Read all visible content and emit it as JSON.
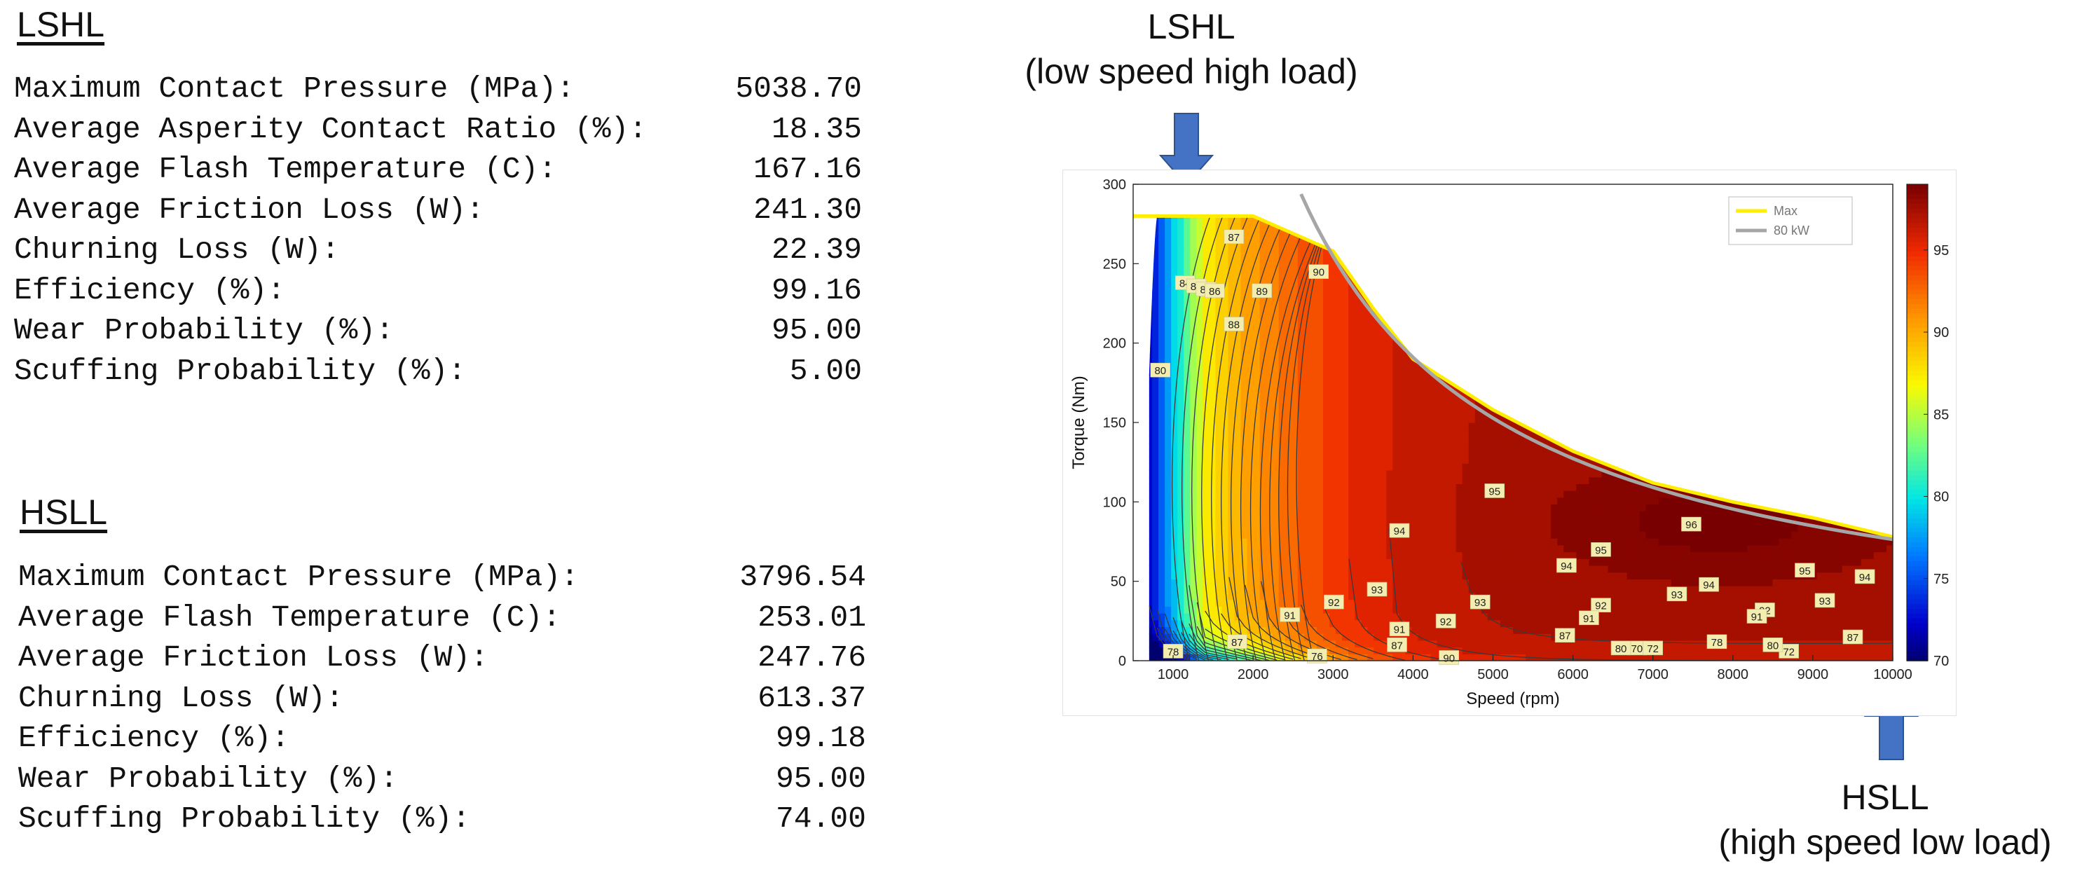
{
  "lshl": {
    "title": "LSHL",
    "rows": [
      {
        "label": "Maximum Contact Pressure (MPa):",
        "value": "5038.70"
      },
      {
        "label": "Average Asperity Contact Ratio (%):",
        "value": "18.35"
      },
      {
        "label": "Average Flash Temperature (C):",
        "value": "167.16"
      },
      {
        "label": "Average Friction Loss (W):",
        "value": "241.30"
      },
      {
        "label": "Churning Loss (W):",
        "value": "22.39"
      },
      {
        "label": "Efficiency (%):",
        "value": "99.16"
      },
      {
        "label": "Wear Probability (%):",
        "value": "95.00"
      },
      {
        "label": "Scuffing Probability (%):",
        "value": "5.00"
      }
    ]
  },
  "hsll": {
    "title": "HSLL",
    "rows": [
      {
        "label": "Maximum Contact Pressure (MPa):",
        "value": "3796.54"
      },
      {
        "label": "Average Flash Temperature (C):",
        "value": "253.01"
      },
      {
        "label": "Average Friction Loss (W):",
        "value": "247.76"
      },
      {
        "label": "Churning Loss (W):",
        "value": "613.37"
      },
      {
        "label": "Efficiency (%):",
        "value": "99.18"
      },
      {
        "label": "Wear Probability (%):",
        "value": "95.00"
      },
      {
        "label": "Scuffing Probability (%):",
        "value": "74.00"
      }
    ]
  },
  "callouts": {
    "lshl": {
      "line1": "LSHL",
      "line2": "(low speed high load)"
    },
    "hsll": {
      "line1": "HSLL",
      "line2": "(high speed low load)"
    }
  },
  "colors": {
    "arrow": "#4472c4",
    "max_line": "#ffee00",
    "power_line": "#a6a6a6",
    "contour_line": "#3a3a3a",
    "label_bg": "#f3eeb0"
  },
  "chart_data": {
    "type": "contour",
    "xlabel": "Speed (rpm)",
    "ylabel": "Torque (Nm)",
    "xlim": [
      500,
      10000
    ],
    "ylim": [
      0,
      300
    ],
    "xticks": [
      1000,
      2000,
      3000,
      4000,
      5000,
      6000,
      7000,
      8000,
      9000,
      10000
    ],
    "yticks": [
      0,
      50,
      100,
      150,
      200,
      250,
      300
    ],
    "colorbar": {
      "min": 70,
      "max": 99,
      "ticks": [
        70,
        75,
        80,
        85,
        90,
        95
      ]
    },
    "legend": {
      "position": "top-right",
      "entries": [
        {
          "name": "Max",
          "color": "#ffee00"
        },
        {
          "name": "80 kW",
          "color": "#a6a6a6"
        }
      ]
    },
    "max_torque_curve": [
      [
        500,
        280
      ],
      [
        2000,
        280
      ],
      [
        3000,
        258
      ],
      [
        3500,
        222
      ],
      [
        4000,
        190
      ],
      [
        5000,
        158
      ],
      [
        6000,
        132
      ],
      [
        7000,
        112
      ],
      [
        8000,
        100
      ],
      [
        9000,
        90
      ],
      [
        10000,
        78
      ]
    ],
    "power_curve_kw": 80,
    "contour_labels": [
      {
        "x": 1150,
        "y": 238,
        "v": "84"
      },
      {
        "x": 1290,
        "y": 236,
        "v": "85"
      },
      {
        "x": 1410,
        "y": 234,
        "v": "86"
      },
      {
        "x": 1520,
        "y": 233,
        "v": "86"
      },
      {
        "x": 1760,
        "y": 267,
        "v": "87"
      },
      {
        "x": 1760,
        "y": 212,
        "v": "88"
      },
      {
        "x": 2110,
        "y": 233,
        "v": "89"
      },
      {
        "x": 2820,
        "y": 245,
        "v": "90"
      },
      {
        "x": 840,
        "y": 183,
        "v": "80"
      },
      {
        "x": 5020,
        "y": 107,
        "v": "95"
      },
      {
        "x": 3830,
        "y": 82,
        "v": "94"
      },
      {
        "x": 6350,
        "y": 70,
        "v": "95"
      },
      {
        "x": 7480,
        "y": 86,
        "v": "96"
      },
      {
        "x": 8900,
        "y": 57,
        "v": "95"
      },
      {
        "x": 5920,
        "y": 60,
        "v": "94"
      },
      {
        "x": 7700,
        "y": 48,
        "v": "94"
      },
      {
        "x": 9650,
        "y": 53,
        "v": "94"
      },
      {
        "x": 3550,
        "y": 45,
        "v": "93"
      },
      {
        "x": 4840,
        "y": 37,
        "v": "93"
      },
      {
        "x": 7300,
        "y": 42,
        "v": "93"
      },
      {
        "x": 9150,
        "y": 38,
        "v": "93"
      },
      {
        "x": 3010,
        "y": 37,
        "v": "92"
      },
      {
        "x": 4410,
        "y": 25,
        "v": "92"
      },
      {
        "x": 6350,
        "y": 35,
        "v": "92"
      },
      {
        "x": 8400,
        "y": 32,
        "v": "92"
      },
      {
        "x": 2460,
        "y": 29,
        "v": "91"
      },
      {
        "x": 3830,
        "y": 20,
        "v": "91"
      },
      {
        "x": 6200,
        "y": 27,
        "v": "91"
      },
      {
        "x": 8300,
        "y": 28,
        "v": "91"
      },
      {
        "x": 4450,
        "y": 2,
        "v": "90"
      },
      {
        "x": 6800,
        "y": 8,
        "v": "70"
      },
      {
        "x": 7800,
        "y": 12,
        "v": "78"
      },
      {
        "x": 5900,
        "y": 16,
        "v": "87"
      },
      {
        "x": 1000,
        "y": 6,
        "v": "78"
      },
      {
        "x": 1800,
        "y": 12,
        "v": "87"
      },
      {
        "x": 2800,
        "y": 3,
        "v": "76"
      },
      {
        "x": 3800,
        "y": 10,
        "v": "87"
      },
      {
        "x": 6600,
        "y": 8,
        "v": "80"
      },
      {
        "x": 7000,
        "y": 8,
        "v": "72"
      },
      {
        "x": 8700,
        "y": 6,
        "v": "72"
      },
      {
        "x": 9500,
        "y": 15,
        "v": "87"
      },
      {
        "x": 8500,
        "y": 10,
        "v": "80"
      }
    ]
  }
}
